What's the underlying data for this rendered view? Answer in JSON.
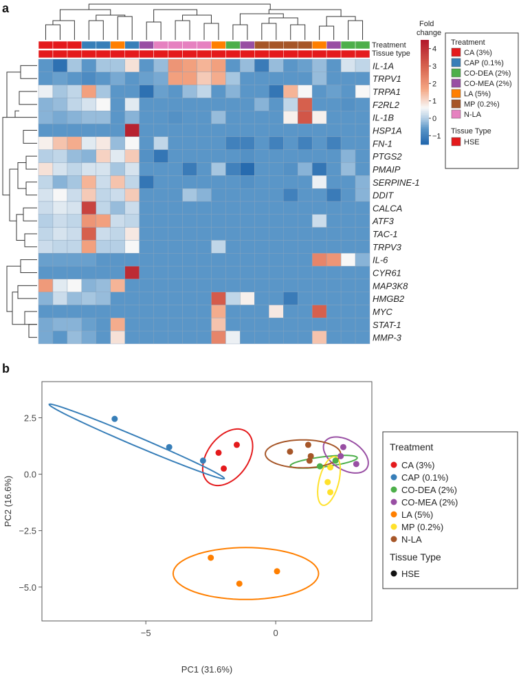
{
  "chart_data": [
    {
      "type": "heatmap",
      "panel": "a",
      "row_labels": [
        "IL-1A",
        "TRPV1",
        "TRPA1",
        "F2RL2",
        "IL-1B",
        "HSP1A",
        "FN-1",
        "PTGS2",
        "PMAIP",
        "SERPINE-1",
        "DDIT",
        "CALCA",
        "ATF3",
        "TAC-1",
        "TRPV3",
        "IL-6",
        "CYR61",
        "MAP3K8",
        "HMGB2",
        "MYC",
        "STAT-1",
        "MMP-3"
      ],
      "annotation_rows": [
        "Treatment",
        "Tissue type"
      ],
      "column_treatment_codes": [
        "CA",
        "CA",
        "CA",
        "CAP",
        "CAP",
        "LA",
        "CAP",
        "CO-MEA",
        "N-LA",
        "N-LA",
        "N-LA",
        "N-LA",
        "LA",
        "CO-DEA",
        "CO-MEA",
        "MP",
        "MP",
        "MP",
        "MP",
        "LA",
        "CO-MEA",
        "CO-DEA",
        "CO-DEA"
      ],
      "column_tissue_codes": [
        "HSE",
        "HSE",
        "HSE",
        "HSE",
        "HSE",
        "HSE",
        "HSE",
        "HSE",
        "HSE",
        "HSE",
        "HSE",
        "HSE",
        "HSE",
        "HSE",
        "HSE",
        "HSE",
        "HSE",
        "HSE",
        "HSE",
        "HSE",
        "HSE",
        "HSE",
        "HSE"
      ],
      "colorbar": {
        "title": "Fold change",
        "ticks": [
          "4",
          "3",
          "2",
          "1",
          "0",
          "−1"
        ],
        "tick_values": [
          4,
          3,
          2,
          1,
          0,
          -1
        ],
        "range": [
          -1.5,
          4.5
        ]
      },
      "values": [
        [
          -0.6,
          -1.3,
          -0.1,
          -0.6,
          -0.1,
          -0.1,
          0.9,
          -0.6,
          -0.2,
          2.0,
          1.8,
          1.5,
          1.8,
          -0.6,
          -0.2,
          -1.1,
          -0.2,
          -0.6,
          -0.5,
          -0.2,
          -0.6,
          0.3,
          0.1
        ],
        [
          -0.6,
          -0.5,
          -0.6,
          -0.8,
          -0.6,
          -0.4,
          -0.6,
          -0.5,
          -0.4,
          1.8,
          1.8,
          1.2,
          1.6,
          -0.1,
          -0.6,
          -0.6,
          -0.6,
          -0.6,
          -0.6,
          -0.2,
          -0.6,
          -0.6,
          -0.6
        ],
        [
          0.5,
          -0.1,
          0.1,
          1.8,
          -0.1,
          -0.6,
          -0.6,
          -1.3,
          -0.5,
          -0.6,
          -0.2,
          0.1,
          -0.6,
          -0.3,
          -0.6,
          -0.6,
          -1.2,
          1.5,
          0.6,
          -0.6,
          -0.5,
          -0.6,
          0.6
        ],
        [
          -0.3,
          -0.2,
          0.1,
          0.3,
          0.6,
          -0.6,
          0.4,
          -0.6,
          -0.6,
          -0.6,
          -0.6,
          -0.6,
          -0.6,
          -0.6,
          -0.6,
          -0.3,
          -0.6,
          0.1,
          3.0,
          -0.6,
          -0.6,
          -0.7,
          -0.6
        ],
        [
          -0.3,
          -0.4,
          -0.3,
          -0.2,
          -0.2,
          -0.6,
          -0.3,
          -0.6,
          -0.6,
          -0.7,
          -0.6,
          -0.6,
          -0.2,
          -0.6,
          -0.6,
          -0.6,
          -0.6,
          0.7,
          3.2,
          0.7,
          -0.6,
          -0.6,
          -0.6
        ],
        [
          -0.6,
          -0.6,
          -0.6,
          -0.6,
          -0.6,
          -0.6,
          4.3,
          -0.6,
          -0.6,
          -0.6,
          -0.6,
          -0.6,
          -0.6,
          -0.6,
          -0.6,
          -0.6,
          -0.6,
          -0.6,
          -0.6,
          -0.6,
          -0.6,
          -0.6,
          -0.6
        ],
        [
          0.7,
          1.3,
          1.6,
          0.4,
          0.8,
          -0.2,
          0.6,
          -0.6,
          0.1,
          -0.6,
          -0.6,
          -0.6,
          -0.6,
          -1.0,
          -1.0,
          -0.6,
          -1.0,
          -0.6,
          -1.0,
          -0.6,
          -1.0,
          -0.6,
          -0.6
        ],
        [
          0.0,
          0.1,
          -0.2,
          -0.3,
          1.1,
          0.4,
          1.2,
          -0.7,
          -1.2,
          -0.6,
          -0.6,
          -0.6,
          -0.6,
          -0.6,
          -0.7,
          -0.6,
          -0.6,
          -0.6,
          -0.6,
          -0.6,
          -0.6,
          -0.3,
          -0.6
        ],
        [
          0.9,
          0.3,
          0.1,
          0.3,
          0.3,
          -0.1,
          0.3,
          -0.6,
          -0.6,
          -0.6,
          -1.1,
          -0.6,
          -0.1,
          -1.0,
          -1.4,
          -0.6,
          -0.6,
          -0.7,
          -0.3,
          -1.2,
          -0.6,
          -0.2,
          -0.6
        ],
        [
          0.1,
          -0.3,
          -0.1,
          1.5,
          0.2,
          1.3,
          0.1,
          -1.2,
          -0.6,
          -0.6,
          -0.6,
          -0.6,
          -0.6,
          -0.6,
          -0.7,
          -0.6,
          -0.6,
          -0.6,
          -0.6,
          0.5,
          -0.6,
          -0.6,
          -0.3
        ],
        [
          0.3,
          0.6,
          0.2,
          1.2,
          0.1,
          0.2,
          1.2,
          -0.6,
          -0.6,
          -0.6,
          -0.1,
          -0.3,
          -0.6,
          -0.6,
          -0.6,
          -0.6,
          -0.6,
          -1.0,
          -0.6,
          -0.6,
          -1.1,
          -0.6,
          -0.3
        ],
        [
          0.2,
          0.4,
          0.3,
          3.6,
          0.1,
          -0.2,
          0.2,
          -0.6,
          -0.6,
          -0.6,
          -0.6,
          -0.6,
          -0.6,
          -0.6,
          -0.6,
          -0.6,
          -0.6,
          -0.6,
          -0.6,
          -0.6,
          -0.6,
          -0.6,
          -0.6
        ],
        [
          0.0,
          0.2,
          0.1,
          2.0,
          1.8,
          0.2,
          0.1,
          -0.6,
          -0.6,
          -0.6,
          -0.6,
          -0.6,
          -0.6,
          -0.6,
          -0.6,
          -0.6,
          -0.6,
          -0.6,
          -0.6,
          0.2,
          -0.6,
          -0.6,
          -0.6
        ],
        [
          0.1,
          0.3,
          0.2,
          3.0,
          0.2,
          0.1,
          0.8,
          -0.6,
          -0.6,
          -0.6,
          -0.6,
          -0.6,
          -0.6,
          -0.6,
          -0.6,
          -0.6,
          -0.6,
          -0.6,
          -0.6,
          -0.6,
          -0.6,
          -0.6,
          -0.6
        ],
        [
          0.2,
          0.1,
          0.1,
          1.8,
          0.0,
          0.0,
          0.6,
          -0.6,
          -0.6,
          -0.6,
          -0.6,
          -0.6,
          0.1,
          -0.6,
          -0.6,
          -0.6,
          -0.6,
          -0.6,
          -0.6,
          -0.6,
          -0.6,
          -0.6,
          -0.6
        ],
        [
          -0.5,
          -0.5,
          -0.5,
          -0.5,
          -0.6,
          -0.6,
          -0.6,
          -0.6,
          -0.6,
          -0.6,
          -0.6,
          -0.6,
          -0.6,
          -0.6,
          -0.6,
          -0.6,
          -0.6,
          -0.6,
          -0.6,
          2.3,
          2.0,
          0.6,
          -0.3
        ],
        [
          -0.6,
          -0.6,
          -0.6,
          -0.6,
          -0.6,
          -0.6,
          4.1,
          -0.6,
          -0.6,
          -0.6,
          -0.6,
          -0.6,
          -0.6,
          -0.6,
          -0.6,
          -0.6,
          -0.6,
          -0.6,
          -0.6,
          -0.6,
          -0.6,
          -0.6,
          -0.6
        ],
        [
          1.9,
          0.4,
          0.6,
          -0.3,
          -0.2,
          1.5,
          -0.6,
          -0.6,
          -0.6,
          -0.6,
          -0.6,
          -0.6,
          -0.6,
          -0.6,
          -0.6,
          -0.6,
          -0.6,
          -0.6,
          -0.6,
          -0.6,
          -0.6,
          -0.6,
          -0.6
        ],
        [
          -0.3,
          0.2,
          -0.2,
          -0.1,
          -0.2,
          -0.6,
          -0.6,
          -0.6,
          -0.6,
          -0.6,
          -0.6,
          -0.6,
          3.1,
          0.1,
          0.7,
          -0.6,
          -0.6,
          -1.1,
          -0.6,
          -0.6,
          -0.6,
          -0.6,
          -0.6
        ],
        [
          -0.6,
          -0.6,
          -0.6,
          -0.6,
          -0.6,
          -0.6,
          -0.6,
          -0.6,
          -0.6,
          -0.6,
          -0.6,
          -0.6,
          1.6,
          -0.6,
          -0.6,
          -0.6,
          0.8,
          -0.6,
          -0.6,
          3.0,
          -0.6,
          -0.6,
          -0.6
        ],
        [
          -0.4,
          -0.3,
          -0.3,
          -0.5,
          -0.6,
          1.6,
          -0.6,
          -0.6,
          -0.6,
          -0.6,
          -0.6,
          -0.6,
          1.3,
          -0.6,
          -0.6,
          -0.6,
          -0.6,
          -0.6,
          -0.6,
          -0.6,
          -0.6,
          -0.6,
          -0.6
        ],
        [
          -0.4,
          -0.6,
          -0.2,
          -0.4,
          -0.6,
          0.9,
          -0.6,
          -0.6,
          -0.6,
          -0.6,
          -0.6,
          -0.6,
          2.3,
          0.5,
          -0.6,
          -0.6,
          -0.6,
          -0.6,
          -0.6,
          1.3,
          -0.6,
          -0.6,
          -0.6
        ]
      ],
      "legend": {
        "treatment_title": "Treatment",
        "treatment_items": [
          "CA (3%)",
          "CAP  (0.1%)",
          "CO-DEA (2%)",
          "CO-MEA (2%)",
          "LA (5%)",
          "MP (0.2%)",
          "N-LA"
        ],
        "tissue_title": "Tissue Type",
        "tissue_items": [
          "HSE"
        ]
      }
    },
    {
      "type": "scatter",
      "panel": "b",
      "xlabel": "PC1 (31.6%)",
      "ylabel": "PC2 (16.6%)",
      "xlim": [
        -9.0,
        3.7
      ],
      "ylim": [
        -6.5,
        4.1
      ],
      "xticks": [
        -5,
        0
      ],
      "xtick_labels": [
        "−5",
        "0"
      ],
      "yticks": [
        2.5,
        0.0,
        -2.5,
        -5.0
      ],
      "ytick_labels": [
        "2.5",
        "0.0",
        "−2.5",
        "−5.0"
      ],
      "series": [
        {
          "name": "CA (3%)",
          "points": [
            [
              -2.2,
              0.95
            ],
            [
              -1.5,
              1.3
            ],
            [
              -2.0,
              0.25
            ]
          ]
        },
        {
          "name": "CAP (0.1%)",
          "points": [
            [
              -6.2,
              2.45
            ],
            [
              -4.1,
              1.2
            ],
            [
              -2.8,
              0.6
            ]
          ]
        },
        {
          "name": "CO-DEA (2%)",
          "points": [
            [
              1.7,
              0.35
            ],
            [
              2.3,
              0.6
            ]
          ]
        },
        {
          "name": "CO-MEA (2%)",
          "points": [
            [
              2.6,
              1.2
            ],
            [
              2.5,
              0.8
            ],
            [
              3.1,
              0.45
            ]
          ]
        },
        {
          "name": "LA (5%)",
          "points": [
            [
              -2.5,
              -3.7
            ],
            [
              -1.4,
              -4.85
            ],
            [
              0.05,
              -4.3
            ]
          ]
        },
        {
          "name": "MP (0.2%)",
          "points": [
            [
              2.1,
              0.3
            ],
            [
              2.0,
              -0.35
            ],
            [
              2.1,
              -0.8
            ]
          ]
        },
        {
          "name": "N-LA",
          "points": [
            [
              0.55,
              1.0
            ],
            [
              1.25,
              1.3
            ],
            [
              1.35,
              0.8
            ],
            [
              1.3,
              0.6
            ]
          ]
        }
      ],
      "ellipses": [
        {
          "series": "CA (3%)",
          "cx": -1.85,
          "cy": 0.75,
          "rx": 1.35,
          "ry": 0.82,
          "angle_deg": 62
        },
        {
          "series": "CAP (0.1%)",
          "cx": -5.35,
          "cy": 1.45,
          "rx": 3.75,
          "ry": 0.2,
          "angle_deg": -26
        },
        {
          "series": "CO-DEA (2%)",
          "cx": 1.85,
          "cy": 0.55,
          "rx": 1.3,
          "ry": 0.22,
          "angle_deg": 8
        },
        {
          "series": "CO-MEA (2%)",
          "cx": 2.7,
          "cy": 0.85,
          "rx": 1.0,
          "ry": 0.62,
          "angle_deg": -40
        },
        {
          "series": "LA (5%)",
          "cx": -1.15,
          "cy": -4.4,
          "rx": 2.8,
          "ry": 1.15,
          "angle_deg": 0
        },
        {
          "series": "MP (0.2%)",
          "cx": 2.05,
          "cy": -0.3,
          "rx": 1.1,
          "ry": 0.38,
          "angle_deg": 78
        },
        {
          "series": "N-LA",
          "cx": 1.05,
          "cy": 0.9,
          "rx": 1.45,
          "ry": 0.62,
          "angle_deg": 0
        }
      ],
      "legend": {
        "treatment_title": "Treatment",
        "treatment_items": [
          "CA (3%)",
          "CAP (0.1%)",
          "CO-DEA (2%)",
          "CO-MEA (2%)",
          "LA (5%)",
          "MP (0.2%)",
          "N-LA"
        ],
        "tissue_title": "Tissue Type",
        "tissue_items": [
          "HSE"
        ],
        "placement": "right"
      }
    }
  ],
  "heatmap_panel": {
    "letter": "a",
    "annotation_labels": [
      "Treatment",
      "Tissue type"
    ],
    "colorbar_title": [
      "Fold",
      "change"
    ]
  },
  "pca_panel": {
    "letter": "b"
  },
  "colors": {
    "CA": "#e41a1c",
    "CAP": "#377eb8",
    "CO-DEA": "#4daf4a",
    "CO-MEA": "#984ea3",
    "LA": "#ff7f00",
    "MP": "#ffe12b",
    "N-LA": "#a65628",
    "N-LA_heatmap": "#e681c0",
    "MP_heatmap": "#a65628",
    "HSE": "#e41a1c"
  }
}
